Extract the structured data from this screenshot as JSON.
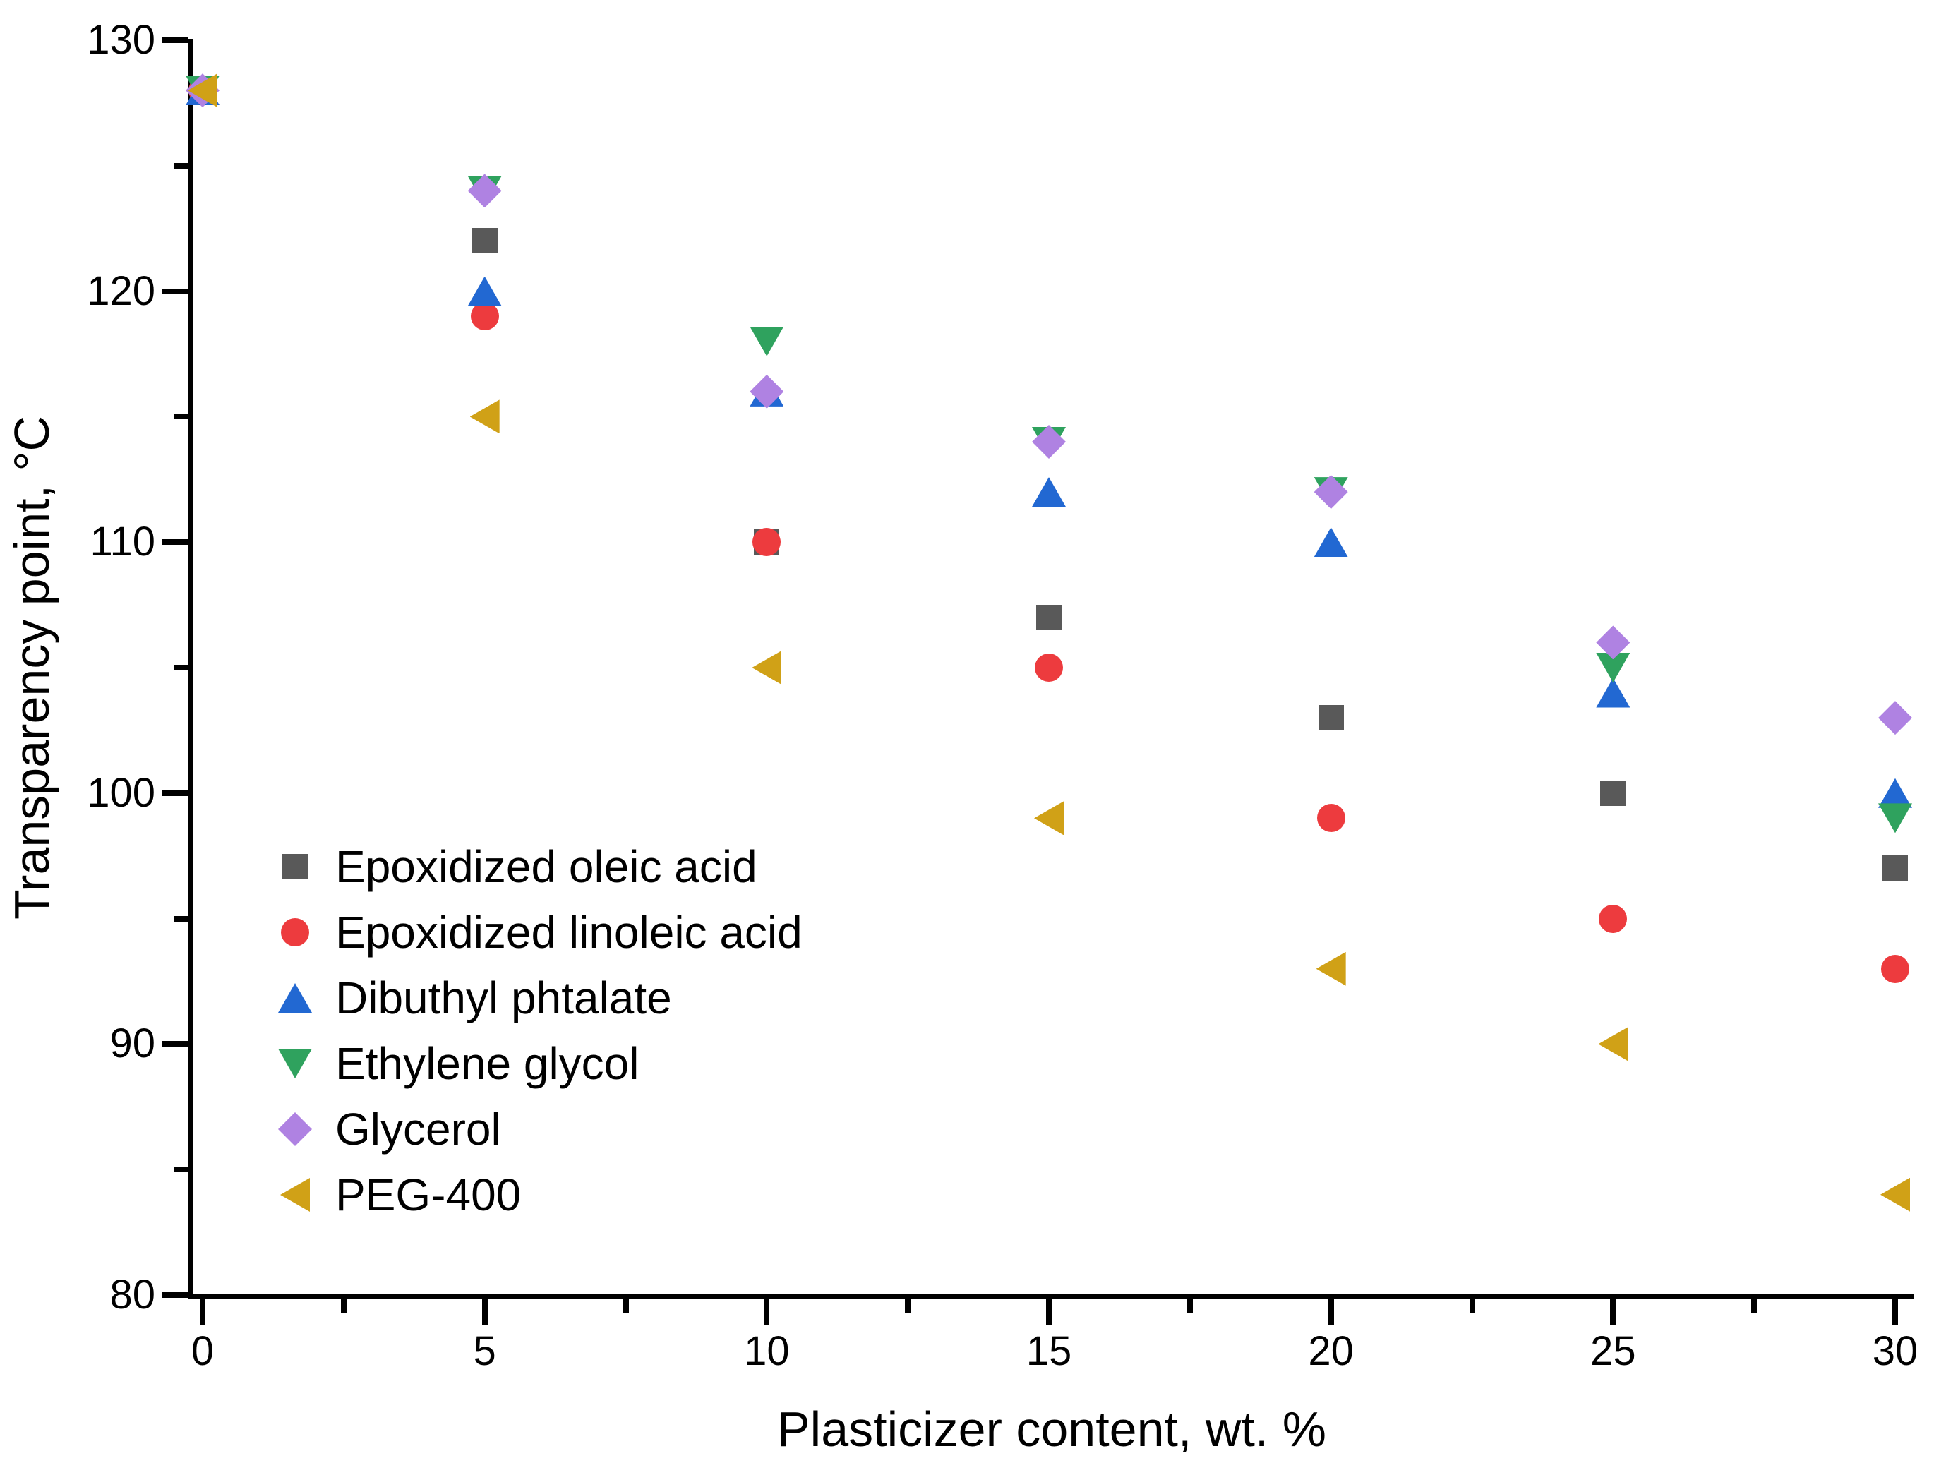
{
  "chart_data": {
    "type": "scatter",
    "title": "",
    "xlabel": "Plasticizer content, wt. %",
    "ylabel": "Transparency point, °C",
    "xlim": [
      0,
      30
    ],
    "ylim": [
      80,
      130
    ],
    "x_major_ticks": [
      0,
      5,
      10,
      15,
      20,
      25,
      30
    ],
    "x_minor_ticks": [
      2.5,
      7.5,
      12.5,
      17.5,
      22.5,
      27.5
    ],
    "y_major_ticks": [
      130,
      120,
      110,
      100,
      90,
      80
    ],
    "y_minor_ticks": [
      125,
      115,
      105,
      95,
      85
    ],
    "grid": false,
    "legend_position": "inside bottom-left",
    "background_color": "#FFFFFF",
    "axis_color": "#000000",
    "x": [
      0,
      5,
      10,
      15,
      20,
      25,
      30
    ],
    "series": [
      {
        "name": "Epoxidized oleic acid",
        "marker": "square",
        "color": "#595959",
        "values": [
          128,
          122,
          110,
          107,
          103,
          100,
          97
        ]
      },
      {
        "name": "Epoxidized linoleic acid",
        "marker": "circle",
        "color": "#ED3B3E",
        "values": [
          128,
          119,
          110,
          105,
          99,
          95,
          93
        ]
      },
      {
        "name": "Dibuthyl phtalate",
        "marker": "triangle-up",
        "color": "#2268D2",
        "values": [
          128,
          120,
          116,
          112,
          110,
          104,
          100
        ]
      },
      {
        "name": "Ethylene glycol",
        "marker": "triangle-down",
        "color": "#2FA25E",
        "values": [
          128,
          124,
          118,
          114,
          112,
          105,
          99
        ]
      },
      {
        "name": "Glycerol",
        "marker": "diamond",
        "color": "#AF82E2",
        "values": [
          128,
          124,
          116,
          114,
          112,
          106,
          103
        ]
      },
      {
        "name": "PEG-400",
        "marker": "triangle-left",
        "color": "#D0A117",
        "values": [
          128,
          115,
          105,
          99,
          93,
          90,
          84
        ]
      }
    ]
  }
}
